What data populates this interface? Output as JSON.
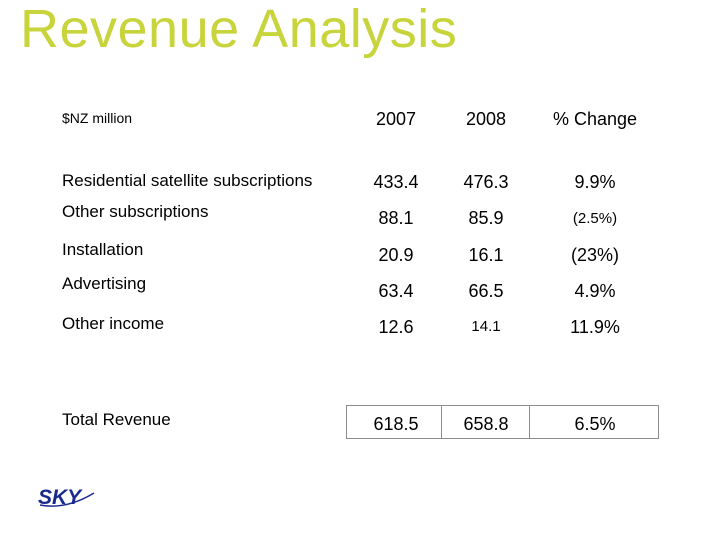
{
  "title": "Revenue Analysis",
  "table": {
    "unit_label": "$NZ million",
    "headers": [
      "2007",
      "2008",
      "% Change"
    ],
    "rows": [
      {
        "label": "Residential satellite subscriptions",
        "y2007": "433.4",
        "y2008": "476.3",
        "change": "9.9%"
      },
      {
        "label": "Other subscriptions",
        "y2007": "88.1",
        "y2008": "85.9",
        "change": "(2.5%)"
      },
      {
        "label": "Installation",
        "y2007": "20.9",
        "y2008": "16.1",
        "change": "(23%)"
      },
      {
        "label": "Advertising",
        "y2007": "63.4",
        "y2008": "66.5",
        "change": "4.9%"
      },
      {
        "label": "Other income",
        "y2007": "12.6",
        "y2008": "14.1",
        "change": "11.9%"
      }
    ],
    "total": {
      "label": "Total Revenue",
      "y2007": "618.5",
      "y2008": "658.8",
      "change": "6.5%"
    }
  },
  "logo": {
    "text": "SKY",
    "icon": "sky-logo-icon",
    "color": "#1a2a8c"
  },
  "colors": {
    "title": "#c8d43c"
  }
}
